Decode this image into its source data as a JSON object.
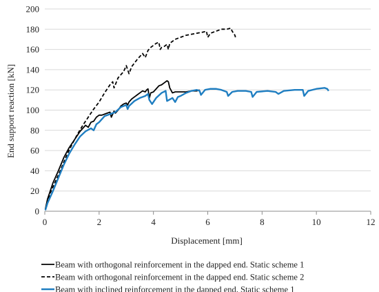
{
  "chart_data": {
    "type": "line",
    "title": "",
    "xlabel": "Displacement [mm]",
    "ylabel": "End support reaction [kN]",
    "xlim": [
      0,
      12
    ],
    "ylim": [
      0,
      200
    ],
    "xticks": [
      0,
      2,
      4,
      6,
      8,
      10,
      12
    ],
    "yticks": [
      0,
      20,
      40,
      60,
      80,
      100,
      120,
      140,
      160,
      180,
      200
    ],
    "grid": "horizontal",
    "legend_position": "bottom",
    "series": [
      {
        "name": "Beam with orthogonal reinforcement in the dapped end. Static scheme 1",
        "color": "#000000",
        "dash": "solid",
        "x": [
          0.02,
          0.1,
          0.3,
          0.5,
          0.7,
          0.9,
          1.1,
          1.3,
          1.5,
          1.6,
          1.7,
          1.8,
          1.9,
          2.0,
          2.1,
          2.2,
          2.3,
          2.4,
          2.45,
          2.55,
          2.6,
          2.7,
          2.8,
          2.9,
          3.0,
          3.05,
          3.1,
          3.2,
          3.3,
          3.4,
          3.5,
          3.6,
          3.7,
          3.75,
          3.8,
          3.85,
          3.9,
          4.0,
          4.1,
          4.2,
          4.3,
          4.4,
          4.5,
          4.55,
          4.6,
          4.7,
          4.8,
          4.9,
          5.0,
          5.2,
          5.4,
          5.6,
          5.7
        ],
        "y": [
          2,
          12,
          28,
          40,
          53,
          63,
          71,
          79,
          85,
          83,
          88,
          89,
          93,
          95,
          95,
          96,
          97,
          98,
          93,
          99,
          97,
          100,
          104,
          106,
          107,
          105,
          108,
          111,
          113,
          115,
          117,
          119,
          118,
          120,
          121,
          112,
          117,
          118,
          121,
          124,
          125,
          127,
          129,
          128,
          122,
          117,
          118,
          118,
          118,
          118,
          119,
          119,
          120
        ]
      },
      {
        "name": "Beam with orthogonal reinforcement in the dapped end. Static scheme 2",
        "color": "#000000",
        "dash": "dashed",
        "x": [
          0.02,
          0.2,
          0.4,
          0.6,
          0.8,
          1.0,
          1.2,
          1.4,
          1.6,
          1.8,
          2.0,
          2.2,
          2.4,
          2.5,
          2.55,
          2.7,
          2.9,
          3.0,
          3.1,
          3.2,
          3.4,
          3.6,
          3.7,
          3.8,
          3.9,
          4.0,
          4.1,
          4.2,
          4.25,
          4.3,
          4.4,
          4.5,
          4.55,
          4.6,
          4.8,
          5.0,
          5.2,
          5.4,
          5.6,
          5.8,
          5.95,
          6.0,
          6.1,
          6.3,
          6.5,
          6.7,
          6.85,
          6.9,
          7.0,
          7.02
        ],
        "y": [
          2,
          18,
          30,
          42,
          55,
          66,
          76,
          85,
          93,
          101,
          108,
          117,
          125,
          128,
          122,
          132,
          138,
          144,
          136,
          143,
          150,
          156,
          152,
          159,
          162,
          164,
          166,
          167,
          160,
          162,
          163,
          165,
          160,
          166,
          170,
          172,
          174,
          175,
          176,
          177,
          178,
          172,
          176,
          178,
          180,
          180,
          181,
          178,
          174,
          172
        ]
      },
      {
        "name": "Beam with inclined reinforcement in the dapped end. Static scheme 1",
        "color": "#1f7ec1",
        "dash": "solid",
        "x": [
          0.02,
          0.1,
          0.3,
          0.5,
          0.7,
          0.9,
          1.1,
          1.3,
          1.5,
          1.7,
          1.8,
          1.9,
          2.0,
          2.2,
          2.4,
          2.6,
          2.8,
          3.0,
          3.05,
          3.1,
          3.3,
          3.5,
          3.7,
          3.8,
          3.85,
          3.95,
          4.1,
          4.3,
          4.45,
          4.5,
          4.7,
          4.8,
          4.9,
          5.0,
          5.2,
          5.4,
          5.6,
          5.7,
          5.75,
          5.9,
          6.1,
          6.3,
          6.5,
          6.7,
          6.75,
          6.9,
          7.1,
          7.4,
          7.6,
          7.65,
          7.8,
          8.2,
          8.5,
          8.6,
          8.8,
          9.2,
          9.5,
          9.55,
          9.7,
          10.0,
          10.3,
          10.4,
          10.45
        ],
        "y": [
          1,
          8,
          20,
          33,
          46,
          57,
          66,
          74,
          79,
          82,
          80,
          86,
          88,
          94,
          96,
          98,
          103,
          105,
          101,
          104,
          109,
          112,
          114,
          116,
          110,
          106,
          112,
          117,
          119,
          109,
          112,
          108,
          113,
          114,
          117,
          119,
          120,
          119,
          115,
          120,
          121,
          121,
          120,
          118,
          114,
          118,
          119,
          119,
          118,
          113,
          118,
          119,
          118,
          116,
          119,
          120,
          120,
          114,
          119,
          121,
          122,
          121,
          119
        ]
      }
    ]
  }
}
